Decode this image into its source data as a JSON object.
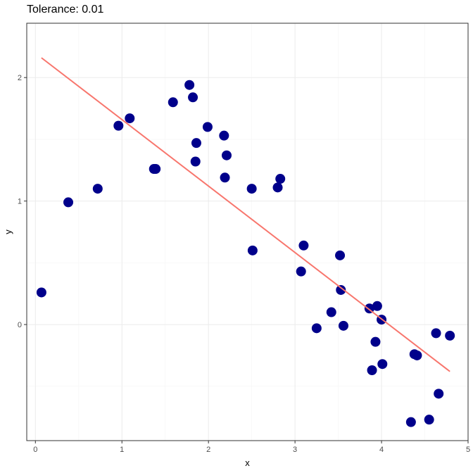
{
  "chart_data": {
    "type": "scatter",
    "title": "Tolerance: 0.01",
    "xlabel": "x",
    "ylabel": "y",
    "xlim": [
      -0.1,
      5.0
    ],
    "ylim": [
      -0.94,
      2.44
    ],
    "x_ticks": [
      0,
      1,
      2,
      3,
      4,
      5
    ],
    "y_ticks": [
      0,
      1,
      2
    ],
    "x_tick_labels": [
      "0",
      "1",
      "2",
      "3",
      "4",
      "5"
    ],
    "y_tick_labels": [
      "0",
      "1",
      "2"
    ],
    "grid": true,
    "legend": "none",
    "colors": {
      "points": "#00008B",
      "fit_line": "#F8766D",
      "grid_major": "#EBEBEB",
      "grid_minor": "#F5F5F5",
      "panel_border": "#333333"
    },
    "points": [
      {
        "x": 0.07,
        "y": 0.26
      },
      {
        "x": 0.38,
        "y": 0.99
      },
      {
        "x": 0.72,
        "y": 1.1
      },
      {
        "x": 0.96,
        "y": 1.61
      },
      {
        "x": 1.09,
        "y": 1.67
      },
      {
        "x": 1.37,
        "y": 1.26
      },
      {
        "x": 1.39,
        "y": 1.26
      },
      {
        "x": 1.59,
        "y": 1.8
      },
      {
        "x": 1.78,
        "y": 1.94
      },
      {
        "x": 1.82,
        "y": 1.84
      },
      {
        "x": 1.85,
        "y": 1.32
      },
      {
        "x": 1.86,
        "y": 1.47
      },
      {
        "x": 1.99,
        "y": 1.6
      },
      {
        "x": 2.18,
        "y": 1.53
      },
      {
        "x": 2.19,
        "y": 1.19
      },
      {
        "x": 2.21,
        "y": 1.37
      },
      {
        "x": 2.5,
        "y": 1.1
      },
      {
        "x": 2.51,
        "y": 0.6
      },
      {
        "x": 2.8,
        "y": 1.11
      },
      {
        "x": 2.83,
        "y": 1.18
      },
      {
        "x": 3.07,
        "y": 0.43
      },
      {
        "x": 3.1,
        "y": 0.64
      },
      {
        "x": 3.25,
        "y": -0.03
      },
      {
        "x": 3.42,
        "y": 0.1
      },
      {
        "x": 3.52,
        "y": 0.56
      },
      {
        "x": 3.53,
        "y": 0.28
      },
      {
        "x": 3.56,
        "y": -0.01
      },
      {
        "x": 3.86,
        "y": 0.13
      },
      {
        "x": 3.89,
        "y": -0.37
      },
      {
        "x": 3.93,
        "y": -0.14
      },
      {
        "x": 3.95,
        "y": 0.15
      },
      {
        "x": 4.0,
        "y": 0.04
      },
      {
        "x": 4.01,
        "y": -0.32
      },
      {
        "x": 4.34,
        "y": -0.79
      },
      {
        "x": 4.38,
        "y": -0.24
      },
      {
        "x": 4.41,
        "y": -0.25
      },
      {
        "x": 4.55,
        "y": -0.77
      },
      {
        "x": 4.63,
        "y": -0.07
      },
      {
        "x": 4.66,
        "y": -0.56
      },
      {
        "x": 4.79,
        "y": -0.09
      }
    ],
    "fit_line": {
      "x": [
        0.07,
        4.79
      ],
      "y": [
        2.16,
        -0.38
      ]
    }
  }
}
